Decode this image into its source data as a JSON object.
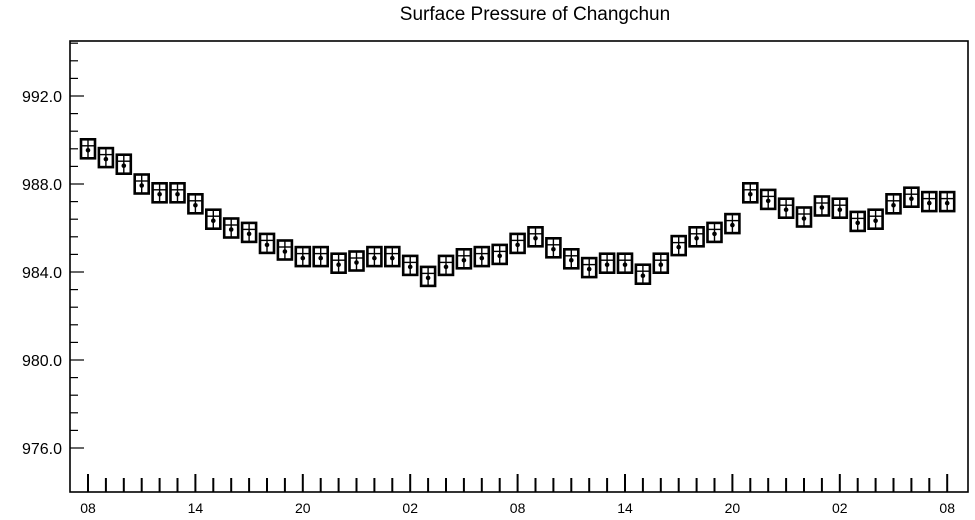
{
  "chart_data": {
    "type": "scatter",
    "title": "Surface Pressure of Changchun",
    "xlabel": "",
    "ylabel": "",
    "ylim": [
      974.0,
      994.5
    ],
    "y_major_ticks": [
      976.0,
      980.0,
      984.0,
      988.0,
      992.0
    ],
    "y_tick_labels": [
      "976.0",
      "980.0",
      "984.0",
      "988.0",
      "992.0"
    ],
    "x_tick_labels": [
      "08",
      "14",
      "20",
      "02",
      "08",
      "14",
      "20",
      "02",
      "08"
    ],
    "x_tick_indices": [
      0,
      6,
      12,
      18,
      24,
      30,
      36,
      42,
      48
    ],
    "grid": false,
    "marker": "boxed-cross",
    "series": [
      {
        "values": [
          989.6,
          989.2,
          988.9,
          988.0,
          987.6,
          987.6,
          987.1,
          986.4,
          986.0,
          985.8,
          985.3,
          985.0,
          984.7,
          984.7,
          984.4,
          984.5,
          984.7,
          984.7,
          984.3,
          983.8,
          984.3,
          984.6,
          984.7,
          984.8,
          985.3,
          985.6,
          985.1,
          984.6,
          984.2,
          984.4,
          984.4,
          983.9,
          984.4,
          985.2,
          985.6,
          985.8,
          986.2,
          987.6,
          987.3,
          986.9,
          986.5,
          987.0,
          986.9,
          986.3,
          986.4,
          987.1,
          987.4,
          987.2,
          987.2
        ]
      }
    ]
  }
}
